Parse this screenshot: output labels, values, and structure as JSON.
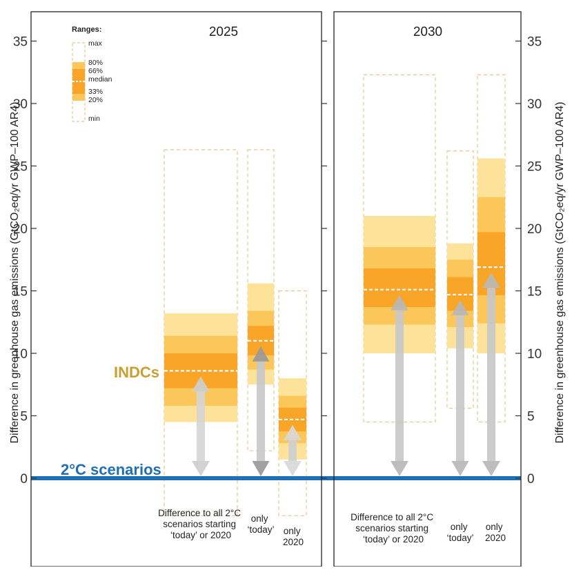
{
  "chart_data": {
    "type": "bar",
    "panels": [
      {
        "title": "2025",
        "categories": [
          [
            "Difference to all 2°C",
            "scenarios starting",
            "‘today’ or 2020"
          ],
          [
            "only",
            "‘today’"
          ],
          [
            "only",
            "2020"
          ]
        ],
        "series": [
          {
            "min": -3,
            "p20": 4.5,
            "p33": 5.8,
            "median": 8.6,
            "p66": 11.4,
            "p80": 13.2,
            "max": 26.3
          },
          {
            "min": 2.2,
            "p20": 7.5,
            "p33": 8.7,
            "median": 11.0,
            "p66": 13.4,
            "p80": 15.6,
            "max": 26.3
          },
          {
            "min": -3,
            "p20": 1.5,
            "p33": 2.8,
            "median": 4.7,
            "p66": 6.6,
            "p80": 8.0,
            "max": 15.0
          }
        ]
      },
      {
        "title": "2030",
        "categories": [
          [
            "Difference to all 2°C",
            "scenarios starting",
            "‘today’ or 2020"
          ],
          [
            "only",
            "‘today’"
          ],
          [
            "only",
            "2020"
          ]
        ],
        "series": [
          {
            "min": 4.5,
            "p20": 10.0,
            "p33": 12.3,
            "median": 15.1,
            "p66": 18.5,
            "p80": 21.0,
            "max": 32.3
          },
          {
            "min": 5.6,
            "p20": 10.4,
            "p33": 12.1,
            "median": 14.7,
            "p66": 17.5,
            "p80": 18.8,
            "max": 26.2
          },
          {
            "min": 4.5,
            "p20": 10.0,
            "p33": 12.4,
            "median": 16.9,
            "p66": 22.5,
            "p80": 25.6,
            "max": 32.3
          }
        ]
      }
    ],
    "y_ticks": [
      0,
      5,
      10,
      15,
      20,
      25,
      30,
      35
    ],
    "ylim": [
      -5.9,
      37.5
    ],
    "ylabel": "Difference in greenhouse gas emissions (GtCO₂eq/yr GWP–100 AR4)",
    "legend": {
      "title": "Ranges:",
      "labels": [
        "max",
        "80%",
        "66%",
        "median",
        "33%",
        "20%",
        "min"
      ],
      "placement": "top-left"
    },
    "annotations": {
      "indc": "INDCs",
      "baseline": "2°C scenarios"
    },
    "colors": {
      "band_outer": "#fde29a",
      "band_mid": "#fcc75a",
      "band_inner": "#f8a528",
      "dashed_outline": "#eac48c",
      "baseline": "#1f6fb2",
      "arrow": "#c4c4c4",
      "indc_label": "#c8a032"
    }
  }
}
